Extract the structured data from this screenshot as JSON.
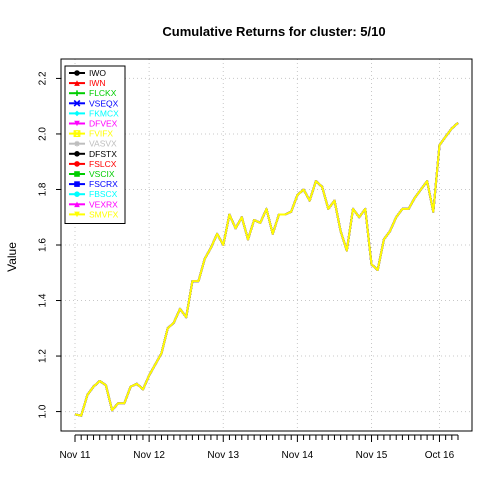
{
  "chart_data": {
    "type": "line",
    "title": "Cumulative Returns for cluster: 5/10",
    "xlabel": "",
    "ylabel": "Value",
    "ylim": [
      0.93,
      2.27
    ],
    "y_ticks": [
      "1.0",
      "1.2",
      "1.4",
      "1.6",
      "1.8",
      "2.0",
      "2.2"
    ],
    "x_ticks": [
      "Nov 11",
      "Nov 12",
      "Nov 13",
      "Nov 14",
      "Nov 15",
      "Oct 16"
    ],
    "x_tick_positions": [
      0,
      12,
      24,
      36,
      48,
      59
    ],
    "n_points": 63,
    "grid": true,
    "legend_position": "top-left",
    "series": [
      {
        "name": "IWO",
        "color": "#000000",
        "marker": "circle",
        "values": [
          0.99,
          0.985,
          1.06,
          1.09,
          1.11,
          1.095,
          1.005,
          1.03,
          1.03,
          1.09,
          1.1,
          1.08,
          1.13,
          1.17,
          1.21,
          1.3,
          1.32,
          1.37,
          1.34,
          1.47,
          1.47,
          1.55,
          1.59,
          1.64,
          1.6,
          1.71,
          1.66,
          1.7,
          1.62,
          1.69,
          1.68,
          1.73,
          1.64,
          1.71,
          1.71,
          1.72,
          1.78,
          1.8,
          1.76,
          1.83,
          1.81,
          1.73,
          1.76,
          1.65,
          1.58,
          1.73,
          1.7,
          1.73,
          1.53,
          1.51,
          1.62,
          1.65,
          1.7,
          1.73,
          1.73,
          1.77,
          1.8,
          1.83,
          1.72,
          1.96,
          1.99,
          2.02,
          2.04
        ]
      },
      {
        "name": "IWN",
        "color": "#ff0000",
        "marker": "triangle",
        "values": [
          0.99,
          0.985,
          1.06,
          1.09,
          1.11,
          1.095,
          1.005,
          1.03,
          1.03,
          1.09,
          1.1,
          1.08,
          1.13,
          1.17,
          1.21,
          1.3,
          1.32,
          1.37,
          1.34,
          1.47,
          1.47,
          1.55,
          1.59,
          1.64,
          1.6,
          1.71,
          1.66,
          1.7,
          1.62,
          1.69,
          1.68,
          1.73,
          1.64,
          1.71,
          1.71,
          1.72,
          1.78,
          1.8,
          1.76,
          1.83,
          1.81,
          1.73,
          1.76,
          1.65,
          1.58,
          1.73,
          1.7,
          1.73,
          1.53,
          1.51,
          1.62,
          1.65,
          1.7,
          1.73,
          1.73,
          1.77,
          1.8,
          1.83,
          1.72,
          1.96,
          1.99,
          2.02,
          2.04
        ]
      },
      {
        "name": "FLCKX",
        "color": "#00cd00",
        "marker": "plus",
        "values": [
          0.99,
          0.985,
          1.06,
          1.09,
          1.11,
          1.095,
          1.005,
          1.03,
          1.03,
          1.09,
          1.1,
          1.08,
          1.13,
          1.17,
          1.21,
          1.3,
          1.32,
          1.37,
          1.34,
          1.47,
          1.47,
          1.55,
          1.59,
          1.64,
          1.6,
          1.71,
          1.66,
          1.7,
          1.62,
          1.69,
          1.68,
          1.73,
          1.64,
          1.71,
          1.71,
          1.72,
          1.78,
          1.8,
          1.76,
          1.83,
          1.81,
          1.73,
          1.76,
          1.65,
          1.58,
          1.73,
          1.7,
          1.73,
          1.53,
          1.51,
          1.62,
          1.65,
          1.7,
          1.73,
          1.73,
          1.77,
          1.8,
          1.83,
          1.72,
          1.96,
          1.99,
          2.02,
          2.04
        ]
      },
      {
        "name": "VSEQX",
        "color": "#0000ff",
        "marker": "x",
        "values": [
          0.99,
          0.985,
          1.06,
          1.09,
          1.11,
          1.095,
          1.005,
          1.03,
          1.03,
          1.09,
          1.1,
          1.08,
          1.13,
          1.17,
          1.21,
          1.3,
          1.32,
          1.37,
          1.34,
          1.47,
          1.47,
          1.55,
          1.59,
          1.64,
          1.6,
          1.71,
          1.66,
          1.7,
          1.62,
          1.69,
          1.68,
          1.73,
          1.64,
          1.71,
          1.71,
          1.72,
          1.78,
          1.8,
          1.76,
          1.83,
          1.81,
          1.73,
          1.76,
          1.65,
          1.58,
          1.73,
          1.7,
          1.73,
          1.53,
          1.51,
          1.62,
          1.65,
          1.7,
          1.73,
          1.73,
          1.77,
          1.8,
          1.83,
          1.72,
          1.96,
          1.99,
          2.02,
          2.04
        ]
      },
      {
        "name": "FKMCX",
        "color": "#00ffff",
        "marker": "diamond",
        "values": [
          0.99,
          0.985,
          1.06,
          1.09,
          1.11,
          1.095,
          1.005,
          1.03,
          1.03,
          1.09,
          1.1,
          1.08,
          1.13,
          1.17,
          1.21,
          1.3,
          1.32,
          1.37,
          1.34,
          1.47,
          1.47,
          1.55,
          1.59,
          1.64,
          1.6,
          1.71,
          1.66,
          1.7,
          1.62,
          1.69,
          1.68,
          1.73,
          1.64,
          1.71,
          1.71,
          1.72,
          1.78,
          1.8,
          1.76,
          1.83,
          1.81,
          1.73,
          1.76,
          1.65,
          1.58,
          1.73,
          1.7,
          1.73,
          1.53,
          1.51,
          1.62,
          1.65,
          1.7,
          1.73,
          1.73,
          1.77,
          1.8,
          1.83,
          1.72,
          1.96,
          1.99,
          2.02,
          2.04
        ]
      },
      {
        "name": "DFVEX",
        "color": "#ff00ff",
        "marker": "triangle-down",
        "values": [
          0.99,
          0.985,
          1.06,
          1.09,
          1.11,
          1.095,
          1.005,
          1.03,
          1.03,
          1.09,
          1.1,
          1.08,
          1.13,
          1.17,
          1.21,
          1.3,
          1.32,
          1.37,
          1.34,
          1.47,
          1.47,
          1.55,
          1.59,
          1.64,
          1.6,
          1.71,
          1.66,
          1.7,
          1.62,
          1.69,
          1.68,
          1.73,
          1.64,
          1.71,
          1.71,
          1.72,
          1.78,
          1.8,
          1.76,
          1.83,
          1.81,
          1.73,
          1.76,
          1.65,
          1.58,
          1.73,
          1.7,
          1.73,
          1.53,
          1.51,
          1.62,
          1.65,
          1.7,
          1.73,
          1.73,
          1.77,
          1.8,
          1.83,
          1.72,
          1.96,
          1.99,
          2.02,
          2.04
        ]
      },
      {
        "name": "FVIFX",
        "color": "#ffff00",
        "marker": "square-x",
        "values": [
          0.99,
          0.985,
          1.06,
          1.09,
          1.11,
          1.095,
          1.005,
          1.03,
          1.03,
          1.09,
          1.1,
          1.08,
          1.13,
          1.17,
          1.21,
          1.3,
          1.32,
          1.37,
          1.34,
          1.47,
          1.47,
          1.55,
          1.59,
          1.64,
          1.6,
          1.71,
          1.66,
          1.7,
          1.62,
          1.69,
          1.68,
          1.73,
          1.64,
          1.71,
          1.71,
          1.72,
          1.78,
          1.8,
          1.76,
          1.83,
          1.81,
          1.73,
          1.76,
          1.65,
          1.58,
          1.73,
          1.7,
          1.73,
          1.53,
          1.51,
          1.62,
          1.65,
          1.7,
          1.73,
          1.73,
          1.77,
          1.8,
          1.83,
          1.72,
          1.96,
          1.99,
          2.02,
          2.04
        ]
      },
      {
        "name": "VASVX",
        "color": "#bebebe",
        "marker": "star",
        "values": [
          0.99,
          0.985,
          1.06,
          1.09,
          1.11,
          1.095,
          1.005,
          1.03,
          1.03,
          1.09,
          1.1,
          1.08,
          1.13,
          1.17,
          1.21,
          1.3,
          1.32,
          1.37,
          1.34,
          1.47,
          1.47,
          1.55,
          1.59,
          1.64,
          1.6,
          1.71,
          1.66,
          1.7,
          1.62,
          1.69,
          1.68,
          1.73,
          1.64,
          1.71,
          1.71,
          1.72,
          1.78,
          1.8,
          1.76,
          1.83,
          1.81,
          1.73,
          1.76,
          1.65,
          1.58,
          1.73,
          1.7,
          1.73,
          1.53,
          1.51,
          1.62,
          1.65,
          1.7,
          1.73,
          1.73,
          1.77,
          1.8,
          1.83,
          1.72,
          1.96,
          1.99,
          2.02,
          2.04
        ]
      },
      {
        "name": "DFSTX",
        "color": "#000000",
        "marker": "circle",
        "values": [
          0.99,
          0.985,
          1.06,
          1.09,
          1.11,
          1.095,
          1.005,
          1.03,
          1.03,
          1.09,
          1.1,
          1.08,
          1.13,
          1.17,
          1.21,
          1.3,
          1.32,
          1.37,
          1.34,
          1.47,
          1.47,
          1.55,
          1.59,
          1.64,
          1.6,
          1.71,
          1.66,
          1.7,
          1.62,
          1.69,
          1.68,
          1.73,
          1.64,
          1.71,
          1.71,
          1.72,
          1.78,
          1.8,
          1.76,
          1.83,
          1.81,
          1.73,
          1.76,
          1.65,
          1.58,
          1.73,
          1.7,
          1.73,
          1.53,
          1.51,
          1.62,
          1.65,
          1.7,
          1.73,
          1.73,
          1.77,
          1.8,
          1.83,
          1.72,
          1.96,
          1.99,
          2.02,
          2.04
        ]
      },
      {
        "name": "FSLCX",
        "color": "#ff0000",
        "marker": "circle",
        "values": [
          0.99,
          0.985,
          1.06,
          1.09,
          1.11,
          1.095,
          1.005,
          1.03,
          1.03,
          1.09,
          1.1,
          1.08,
          1.13,
          1.17,
          1.21,
          1.3,
          1.32,
          1.37,
          1.34,
          1.47,
          1.47,
          1.55,
          1.59,
          1.64,
          1.6,
          1.71,
          1.66,
          1.7,
          1.62,
          1.69,
          1.68,
          1.73,
          1.64,
          1.71,
          1.71,
          1.72,
          1.78,
          1.8,
          1.76,
          1.83,
          1.81,
          1.73,
          1.76,
          1.65,
          1.58,
          1.73,
          1.7,
          1.73,
          1.53,
          1.51,
          1.62,
          1.65,
          1.7,
          1.73,
          1.73,
          1.77,
          1.8,
          1.83,
          1.72,
          1.96,
          1.99,
          2.02,
          2.04
        ]
      },
      {
        "name": "VSCIX",
        "color": "#00cd00",
        "marker": "square",
        "values": [
          0.99,
          0.985,
          1.06,
          1.09,
          1.11,
          1.095,
          1.005,
          1.03,
          1.03,
          1.09,
          1.1,
          1.08,
          1.13,
          1.17,
          1.21,
          1.3,
          1.32,
          1.37,
          1.34,
          1.47,
          1.47,
          1.55,
          1.59,
          1.64,
          1.6,
          1.71,
          1.66,
          1.7,
          1.62,
          1.69,
          1.68,
          1.73,
          1.64,
          1.71,
          1.71,
          1.72,
          1.78,
          1.8,
          1.76,
          1.83,
          1.81,
          1.73,
          1.76,
          1.65,
          1.58,
          1.73,
          1.7,
          1.73,
          1.53,
          1.51,
          1.62,
          1.65,
          1.7,
          1.73,
          1.73,
          1.77,
          1.8,
          1.83,
          1.72,
          1.96,
          1.99,
          2.02,
          2.04
        ]
      },
      {
        "name": "FSCRX",
        "color": "#0000ff",
        "marker": "square",
        "values": [
          0.99,
          0.985,
          1.06,
          1.09,
          1.11,
          1.095,
          1.005,
          1.03,
          1.03,
          1.09,
          1.1,
          1.08,
          1.13,
          1.17,
          1.21,
          1.3,
          1.32,
          1.37,
          1.34,
          1.47,
          1.47,
          1.55,
          1.59,
          1.64,
          1.6,
          1.71,
          1.66,
          1.7,
          1.62,
          1.69,
          1.68,
          1.73,
          1.64,
          1.71,
          1.71,
          1.72,
          1.78,
          1.8,
          1.76,
          1.83,
          1.81,
          1.73,
          1.76,
          1.65,
          1.58,
          1.73,
          1.7,
          1.73,
          1.53,
          1.51,
          1.62,
          1.65,
          1.7,
          1.73,
          1.73,
          1.77,
          1.8,
          1.83,
          1.72,
          1.96,
          1.99,
          2.02,
          2.04
        ]
      },
      {
        "name": "FBSCX",
        "color": "#00ffff",
        "marker": "circle",
        "values": [
          0.99,
          0.985,
          1.06,
          1.09,
          1.11,
          1.095,
          1.005,
          1.03,
          1.03,
          1.09,
          1.1,
          1.08,
          1.13,
          1.17,
          1.21,
          1.3,
          1.32,
          1.37,
          1.34,
          1.47,
          1.47,
          1.55,
          1.59,
          1.64,
          1.6,
          1.71,
          1.66,
          1.7,
          1.62,
          1.69,
          1.68,
          1.73,
          1.64,
          1.71,
          1.71,
          1.72,
          1.78,
          1.8,
          1.76,
          1.83,
          1.81,
          1.73,
          1.76,
          1.65,
          1.58,
          1.73,
          1.7,
          1.73,
          1.53,
          1.51,
          1.62,
          1.65,
          1.7,
          1.73,
          1.73,
          1.77,
          1.8,
          1.83,
          1.72,
          1.96,
          1.99,
          2.02,
          2.04
        ]
      },
      {
        "name": "VEXRX",
        "color": "#ff00ff",
        "marker": "triangle",
        "values": [
          0.99,
          0.985,
          1.06,
          1.09,
          1.11,
          1.095,
          1.005,
          1.03,
          1.03,
          1.09,
          1.1,
          1.08,
          1.13,
          1.17,
          1.21,
          1.3,
          1.32,
          1.37,
          1.34,
          1.47,
          1.47,
          1.55,
          1.59,
          1.64,
          1.6,
          1.71,
          1.66,
          1.7,
          1.62,
          1.69,
          1.68,
          1.73,
          1.64,
          1.71,
          1.71,
          1.72,
          1.78,
          1.8,
          1.76,
          1.83,
          1.81,
          1.73,
          1.76,
          1.65,
          1.58,
          1.73,
          1.7,
          1.73,
          1.53,
          1.51,
          1.62,
          1.65,
          1.7,
          1.73,
          1.73,
          1.77,
          1.8,
          1.83,
          1.72,
          1.96,
          1.99,
          2.02,
          2.04
        ]
      },
      {
        "name": "SMVFX",
        "color": "#ffff00",
        "marker": "triangle-down",
        "values": [
          0.99,
          0.985,
          1.06,
          1.09,
          1.11,
          1.095,
          1.005,
          1.03,
          1.03,
          1.09,
          1.1,
          1.08,
          1.13,
          1.17,
          1.21,
          1.3,
          1.32,
          1.37,
          1.34,
          1.47,
          1.47,
          1.55,
          1.59,
          1.64,
          1.6,
          1.71,
          1.66,
          1.7,
          1.62,
          1.69,
          1.68,
          1.73,
          1.64,
          1.71,
          1.71,
          1.72,
          1.78,
          1.8,
          1.76,
          1.83,
          1.81,
          1.73,
          1.76,
          1.65,
          1.58,
          1.73,
          1.7,
          1.73,
          1.53,
          1.51,
          1.62,
          1.65,
          1.7,
          1.73,
          1.73,
          1.77,
          1.8,
          1.83,
          1.72,
          1.96,
          1.99,
          2.02,
          2.04
        ]
      }
    ]
  }
}
